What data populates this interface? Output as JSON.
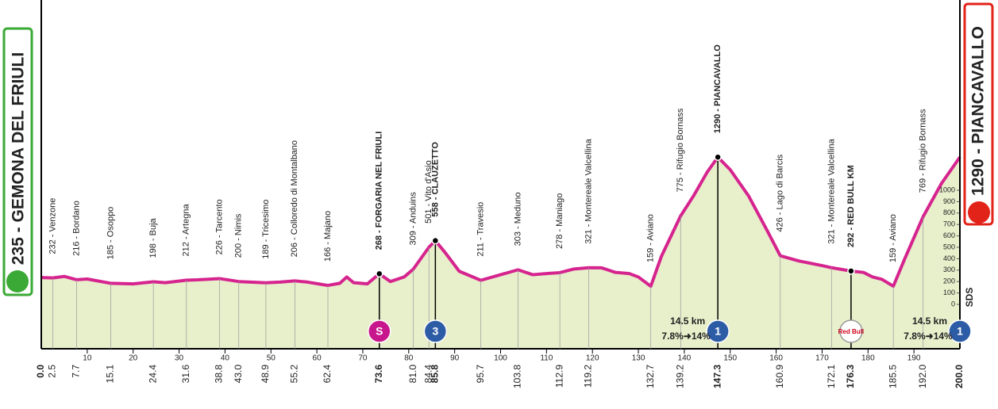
{
  "chart_data": {
    "type": "area",
    "start_label": "235 - GEMONA DEL FRIULI",
    "finish_label": "1290 - PIANCAVALLO",
    "axis_note": "SDS",
    "xlim": [
      0,
      200
    ],
    "xticks": [
      10,
      20,
      30,
      40,
      50,
      60,
      70,
      80,
      90,
      100,
      110,
      120,
      130,
      140,
      150,
      160,
      170,
      180,
      190
    ],
    "ylim": [
      -389,
      2667
    ],
    "yticks": [
      0,
      100,
      200,
      300,
      400,
      500,
      600,
      700,
      800,
      900,
      1000
    ],
    "series": [
      {
        "color": "#d6248f",
        "fill": "#e8efcb",
        "x": [
          0,
          2.5,
          5,
          7.7,
          10,
          15.1,
          20,
          24.4,
          27,
          31.6,
          34,
          38.8,
          43,
          48.9,
          52,
          55.2,
          58,
          62.4,
          65,
          66.5,
          68,
          71,
          73.6,
          76,
          79,
          81,
          84.4,
          85.8,
          88,
          91,
          95.7,
          100,
          103.8,
          107,
          110,
          112.9,
          116,
          119.2,
          122,
          125,
          128,
          130,
          132.7,
          135,
          139.2,
          142,
          145,
          147.3,
          150,
          154,
          158,
          160.9,
          165,
          170,
          172.1,
          176.3,
          179,
          181,
          183,
          185.5,
          188,
          192,
          196,
          200
        ],
        "values": [
          235,
          232,
          245,
          216,
          222,
          185,
          180,
          198,
          190,
          212,
          215,
          226,
          200,
          189,
          195,
          206,
          195,
          166,
          185,
          240,
          190,
          180,
          268,
          200,
          240,
          309,
          501,
          558,
          450,
          290,
          211,
          260,
          303,
          260,
          270,
          278,
          310,
          321,
          320,
          280,
          270,
          240,
          159,
          420,
          775,
          950,
          1160,
          1290,
          1180,
          950,
          650,
          426,
          380,
          340,
          321,
          292,
          280,
          240,
          220,
          159,
          400,
          769,
          1060,
          1290
        ]
      }
    ],
    "waypoints": [
      {
        "km": {
          "value": 0,
          "label": "0.0"
        },
        "bold": true
      },
      {
        "km": 2.5,
        "label": "232 - Venzone"
      },
      {
        "km": 7.7,
        "label": "216 - Bordano"
      },
      {
        "km": 15.1,
        "label": "185 - Osoppo"
      },
      {
        "km": 24.4,
        "label": "198 - Buja"
      },
      {
        "km": 31.6,
        "label": "212 - Artegna"
      },
      {
        "km": 38.8,
        "label": "226 - Tarcento"
      },
      {
        "km": {
          "value": 43,
          "label": "43.0"
        },
        "label": "200 - Nimis"
      },
      {
        "km": 48.9,
        "label": "189 - Tricesimo"
      },
      {
        "km": 55.2,
        "label": "206 - Colloredo di Montalbano"
      },
      {
        "km": 62.4,
        "label": "166 - Majano"
      },
      {
        "km": 73.6,
        "label": "268 - FORGARIA NEL FRIULI",
        "bold": true,
        "badge": "S",
        "badge_color": "#c8168c"
      },
      {
        "km": {
          "value": 81,
          "label": "81.0"
        },
        "label": "309 - Anduins"
      },
      {
        "km": 84.4,
        "label": "501 - Vito d'Asio"
      },
      {
        "km": 85.8,
        "label": "558 - CLAUZETTO",
        "bold": true,
        "badge": "3",
        "badge_color": "#2d5ca6"
      },
      {
        "km": 95.7,
        "label": "211 - Travesio"
      },
      {
        "km": 103.8,
        "label": "303 - Meduno"
      },
      {
        "km": 112.9,
        "label": "278 - Maniago"
      },
      {
        "km": 119.2,
        "label": "321 - Montereale Valcellina"
      },
      {
        "km": 132.7,
        "label": "159 - Aviano"
      },
      {
        "km": 139.2,
        "label": "775 - Rifugio Bornass"
      },
      {
        "km": 147.3,
        "label": "1290 - PIANCAVALLO",
        "bold": true,
        "badge": "1",
        "badge_color": "#2d5ca6",
        "climb": [
          "14.5 km",
          "7.8%➜14%"
        ]
      },
      {
        "km": 160.9,
        "label": "426 - Lago di Barcis"
      },
      {
        "km": 172.1,
        "label": "321 - Montereale Valcellina"
      },
      {
        "km": 176.3,
        "label": "292 - RED BULL KM",
        "bold": true,
        "badge": "Red Bull",
        "badge_color": "#ffffff"
      },
      {
        "km": 185.5,
        "label": "159 - Aviano"
      },
      {
        "km": {
          "value": 192,
          "label": "192.0"
        },
        "label": "769 - Rifugio Bornass"
      },
      {
        "km": {
          "value": 200,
          "label": "200.0"
        },
        "bold": true,
        "badge": "1",
        "badge_color": "#2d5ca6",
        "climb": [
          "14.5 km",
          "7.8%➜14%"
        ]
      }
    ]
  }
}
